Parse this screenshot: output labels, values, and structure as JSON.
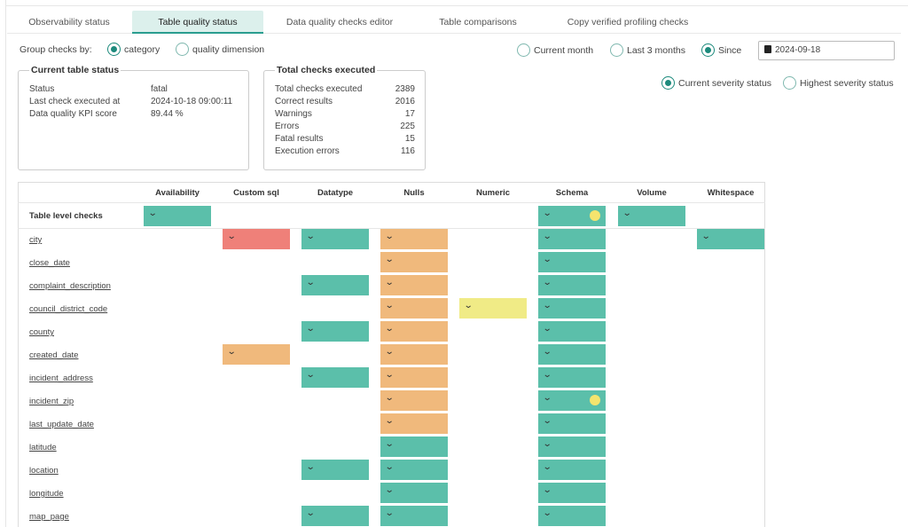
{
  "tabs": [
    {
      "label": "Observability status"
    },
    {
      "label": "Table quality status"
    },
    {
      "label": "Data quality checks editor"
    },
    {
      "label": "Table comparisons"
    },
    {
      "label": "Copy verified profiling checks"
    }
  ],
  "group_by": {
    "label": "Group checks by:",
    "options": [
      "category",
      "quality dimension"
    ],
    "selected": "category"
  },
  "period": {
    "options": [
      "Current month",
      "Last 3 months",
      "Since"
    ],
    "selected": "Since",
    "date": "2024-09-18"
  },
  "severity": {
    "options": [
      "Current severity status",
      "Highest severity status"
    ],
    "selected": "Current severity status"
  },
  "current_status": {
    "title": "Current table status",
    "rows": [
      {
        "label": "Status",
        "value": "fatal"
      },
      {
        "label": "Last check executed at",
        "value": "2024-10-18 09:00:11"
      },
      {
        "label": "Data quality KPI score",
        "value": "89.44 %"
      }
    ]
  },
  "total_checks": {
    "title": "Total checks executed",
    "rows": [
      {
        "label": "Total checks executed",
        "value": "2389"
      },
      {
        "label": "Correct results",
        "value": "2016"
      },
      {
        "label": "Warnings",
        "value": "17"
      },
      {
        "label": "Errors",
        "value": "225"
      },
      {
        "label": "Fatal results",
        "value": "15"
      },
      {
        "label": "Execution errors",
        "value": "116"
      }
    ]
  },
  "table": {
    "columns": [
      "Availability",
      "Custom sql",
      "Datatype",
      "Nulls",
      "Numeric",
      "Schema",
      "Volume",
      "Whitespace"
    ],
    "table_level_label": "Table level checks",
    "rows": [
      "city",
      "close_date",
      "complaint_description",
      "council_district_code",
      "county",
      "created_date",
      "incident_address",
      "incident_zip",
      "last_update_date",
      "latitude",
      "location",
      "longitude",
      "map_page"
    ]
  },
  "colors": {
    "valid": "#5bbfaa",
    "warning": "#f0eb86",
    "error": "#f0b97c",
    "fatal": "#ef8079",
    "accent": "#1c8a7c"
  }
}
